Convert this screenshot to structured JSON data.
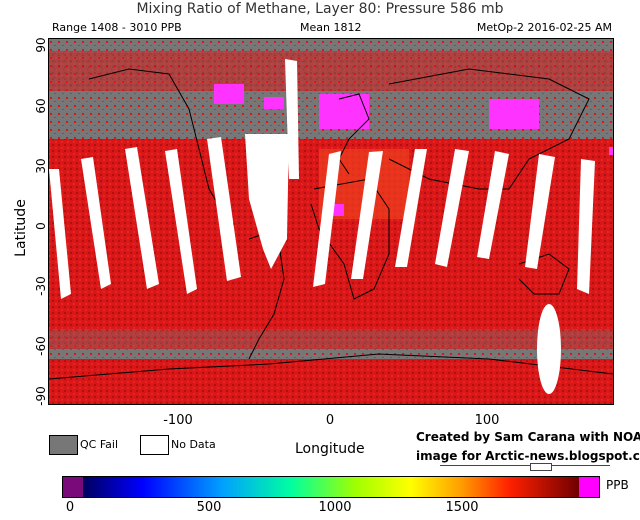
{
  "header": {
    "title": "Mixing Ratio of Methane, Layer 80: Pressure 586 mb",
    "range": "Range 1408 - 3010 PPB",
    "mean": "Mean 1812",
    "satellite": "MetOp-2 2016-02-25 AM"
  },
  "axes": {
    "y_label": "Latitude",
    "x_label": "Longitude",
    "y_ticks": [
      "90",
      "60",
      "30",
      "0",
      "-30",
      "-60",
      "-90"
    ],
    "x_ticks": [
      "-100",
      "0",
      "100"
    ]
  },
  "legend": {
    "qc_fail": "QC Fail",
    "no_data": "No Data",
    "qc_color": "#777777",
    "no_data_color": "#ffffff"
  },
  "credit": {
    "line1": "Created by Sam Carana with NOAA",
    "line2": "image for Arctic-news.blogspot.com"
  },
  "colorbar": {
    "unit": "PPB",
    "ticks": [
      "0",
      "500",
      "1000",
      "1500"
    ],
    "low_cap_color": "#7a0a7a",
    "high_cap_color": "#ff00ff"
  }
}
